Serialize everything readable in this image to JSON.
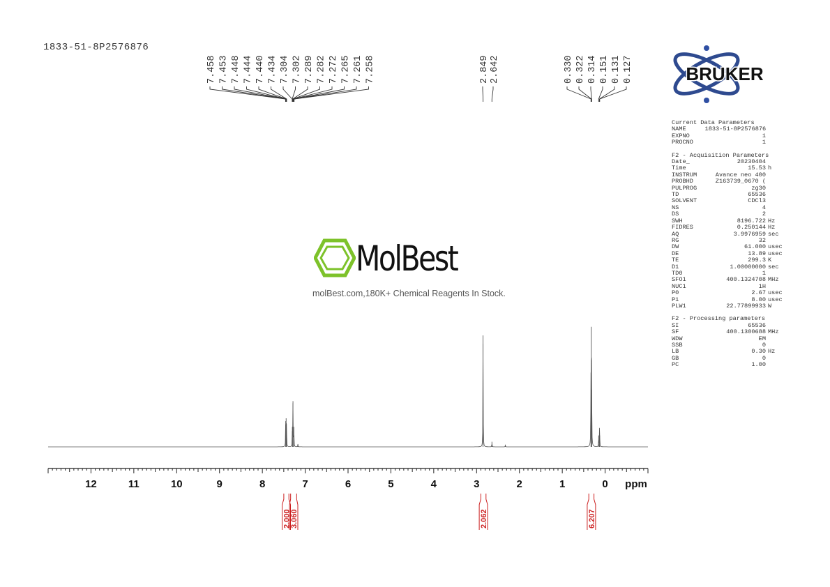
{
  "sample_id": "1833-51-8P2576876",
  "brand": {
    "logo_text": "BRUKER",
    "accent": "#2e4a8f",
    "dot_color": "#2f4fa3"
  },
  "watermark": {
    "name": "MolBest",
    "tagline": "molBest.com,180K+ Chemical Reagents In Stock.",
    "color": "#7dc22a"
  },
  "params": {
    "current_title": "Current Data Parameters",
    "current": [
      {
        "key": "NAME",
        "value": "1833-51-8P2576876",
        "unit": ""
      },
      {
        "key": "EXPNO",
        "value": "1",
        "unit": ""
      },
      {
        "key": "PROCNO",
        "value": "1",
        "unit": ""
      }
    ],
    "acq_title": "F2 - Acquisition Parameters",
    "acq": [
      {
        "key": "Date_",
        "value": "20230404",
        "unit": ""
      },
      {
        "key": "Time",
        "value": "15.53",
        "unit": "h"
      },
      {
        "key": "INSTRUM",
        "value": "Avance neo 400",
        "unit": ""
      },
      {
        "key": "PROBHD",
        "value": "Z163739_0670 (",
        "unit": ""
      },
      {
        "key": "PULPROG",
        "value": "zg30",
        "unit": ""
      },
      {
        "key": "TD",
        "value": "65536",
        "unit": ""
      },
      {
        "key": "SOLVENT",
        "value": "CDCl3",
        "unit": ""
      },
      {
        "key": "NS",
        "value": "4",
        "unit": ""
      },
      {
        "key": "DS",
        "value": "2",
        "unit": ""
      },
      {
        "key": "SWH",
        "value": "8196.722",
        "unit": "Hz"
      },
      {
        "key": "FIDRES",
        "value": "0.250144",
        "unit": "Hz"
      },
      {
        "key": "AQ",
        "value": "3.9976959",
        "unit": "sec"
      },
      {
        "key": "RG",
        "value": "32",
        "unit": ""
      },
      {
        "key": "DW",
        "value": "61.000",
        "unit": "usec"
      },
      {
        "key": "DE",
        "value": "13.89",
        "unit": "usec"
      },
      {
        "key": "TE",
        "value": "299.3",
        "unit": "K"
      },
      {
        "key": "D1",
        "value": "1.00000000",
        "unit": "sec"
      },
      {
        "key": "TD0",
        "value": "1",
        "unit": ""
      },
      {
        "key": "SFO1",
        "value": "400.1324708",
        "unit": "MHz"
      },
      {
        "key": "NUC1",
        "value": "1H",
        "unit": ""
      },
      {
        "key": "P0",
        "value": "2.67",
        "unit": "usec"
      },
      {
        "key": "P1",
        "value": "8.00",
        "unit": "usec"
      },
      {
        "key": "PLW1",
        "value": "22.77899933",
        "unit": "W"
      }
    ],
    "proc_title": "F2 - Processing parameters",
    "proc": [
      {
        "key": "SI",
        "value": "65536",
        "unit": ""
      },
      {
        "key": "SF",
        "value": "400.1300688",
        "unit": "MHz"
      },
      {
        "key": "WDW",
        "value": "EM",
        "unit": ""
      },
      {
        "key": "SSB",
        "value": "0",
        "unit": ""
      },
      {
        "key": "LB",
        "value": "0.30",
        "unit": "Hz"
      },
      {
        "key": "GB",
        "value": "0",
        "unit": ""
      },
      {
        "key": "PC",
        "value": "1.00",
        "unit": ""
      }
    ]
  },
  "chart_data": {
    "type": "line",
    "xlabel": "ppm",
    "xlim": [
      13,
      -1
    ],
    "x_reversed": true,
    "ticks": [
      12,
      11,
      10,
      9,
      8,
      7,
      6,
      5,
      4,
      3,
      2,
      1,
      0
    ],
    "peak_labels": {
      "aromatic": [
        "7.458",
        "7.453",
        "7.448",
        "7.444",
        "7.440",
        "7.434",
        "7.304",
        "7.302",
        "7.289",
        "7.282",
        "7.272",
        "7.265",
        "7.261",
        "7.258"
      ],
      "mid": [
        "2.849",
        "2.642"
      ],
      "upfield": [
        "0.330",
        "0.322",
        "0.314",
        "0.151",
        "0.131",
        "0.127"
      ]
    },
    "peaks": [
      {
        "ppm": 7.455,
        "height": 0.09
      },
      {
        "ppm": 7.445,
        "height": 0.1
      },
      {
        "ppm": 7.437,
        "height": 0.08
      },
      {
        "ppm": 7.3,
        "height": 0.07
      },
      {
        "ppm": 7.285,
        "height": 0.16
      },
      {
        "ppm": 7.265,
        "height": 0.07
      },
      {
        "ppm": 7.17,
        "height": 0.01
      },
      {
        "ppm": 2.849,
        "height": 0.39
      },
      {
        "ppm": 2.642,
        "height": 0.018
      },
      {
        "ppm": 2.33,
        "height": 0.006
      },
      {
        "ppm": 0.33,
        "height": 0.26
      },
      {
        "ppm": 0.322,
        "height": 0.42
      },
      {
        "ppm": 0.314,
        "height": 0.2
      },
      {
        "ppm": 0.151,
        "height": 0.04
      },
      {
        "ppm": 0.131,
        "height": 0.05
      },
      {
        "ppm": 0.127,
        "height": 0.04
      }
    ],
    "integrals": [
      {
        "from": 7.5,
        "to": 7.38,
        "value": "2.000"
      },
      {
        "from": 7.34,
        "to": 7.2,
        "value": "3.060"
      },
      {
        "from": 2.9,
        "to": 2.78,
        "value": "2.062"
      },
      {
        "from": 0.38,
        "to": 0.26,
        "value": "6.207"
      }
    ]
  }
}
